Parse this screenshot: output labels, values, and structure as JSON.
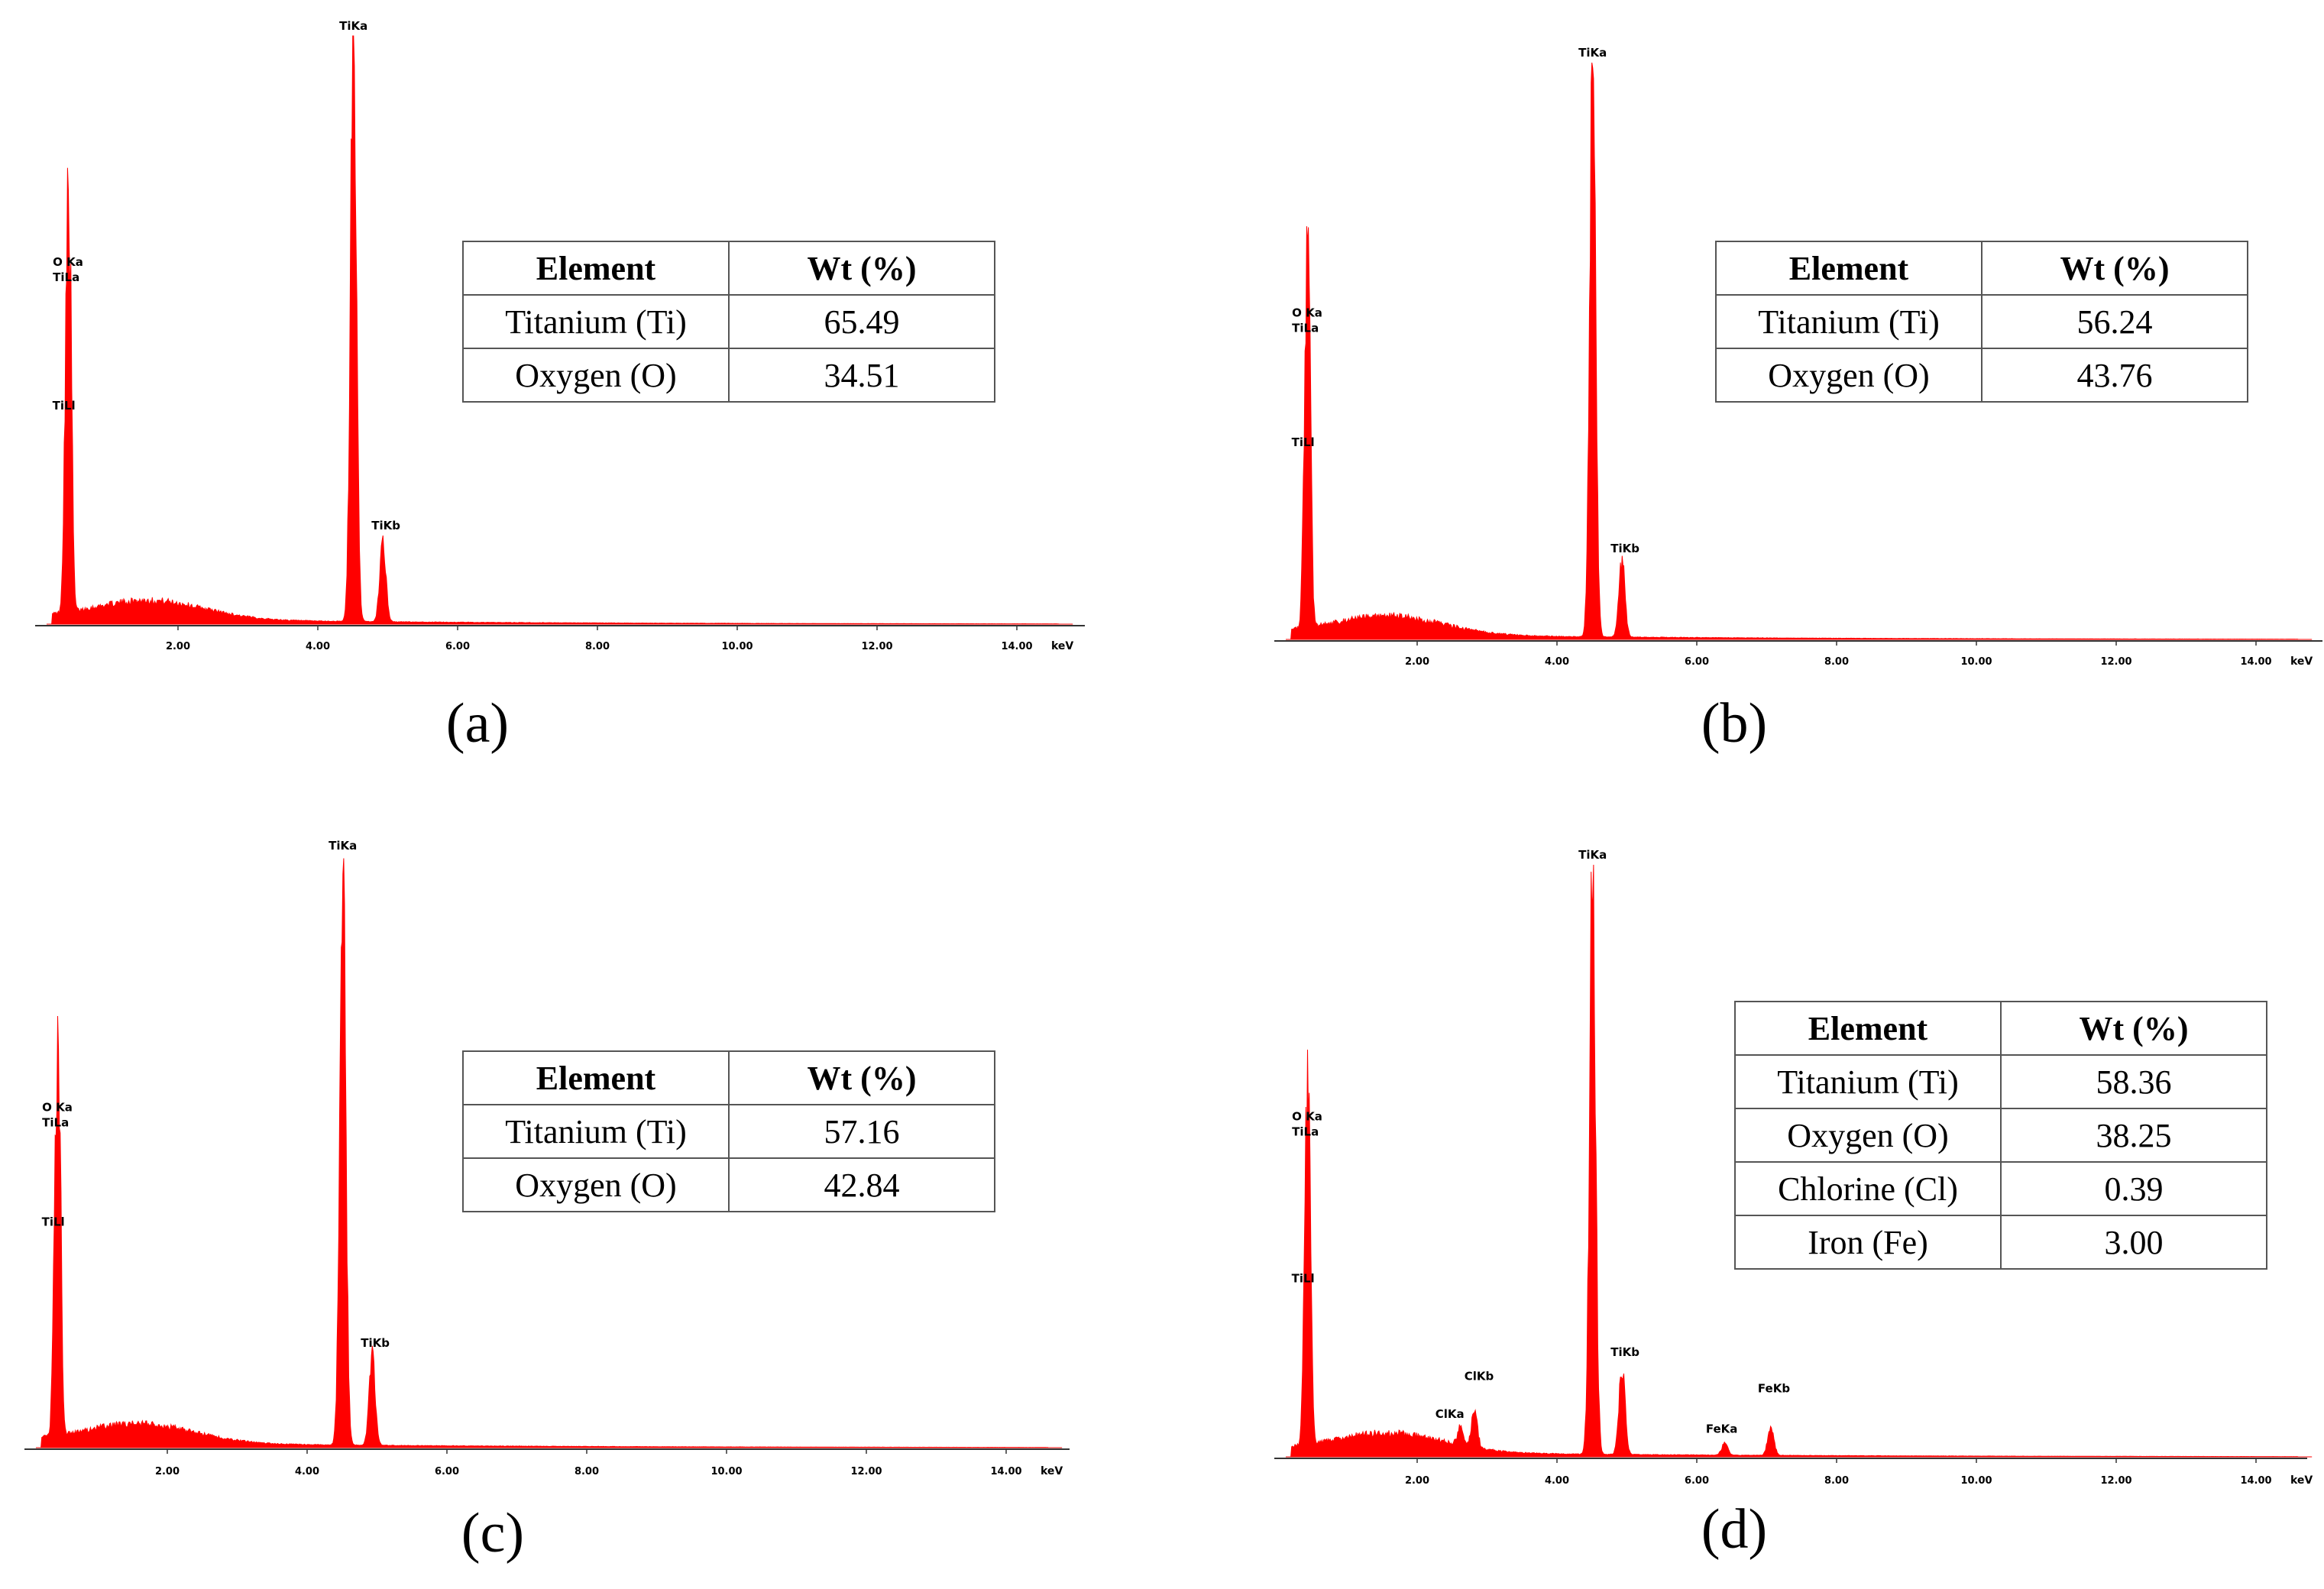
{
  "x_unit": "keV",
  "series_color": "#ff0000",
  "chart_data": [
    {
      "id": "a",
      "label": "(a)",
      "type": "area",
      "xlim": [
        0,
        15
      ],
      "x_ticks": [
        "2.00",
        "4.00",
        "6.00",
        "8.00",
        "10.00",
        "12.00",
        "14.00"
      ],
      "peaks": [
        {
          "x": 0.45,
          "h": 0.57,
          "label": "O Ka\nTiLa"
        },
        {
          "x": 0.4,
          "h": 0.36,
          "label": "TiLl"
        },
        {
          "x": 4.51,
          "h": 1.0,
          "label": "TiKa"
        },
        {
          "x": 4.93,
          "h": 0.14,
          "label": "TiKb"
        }
      ],
      "table": {
        "headers": [
          "Element",
          "Wt (%)"
        ],
        "rows": [
          [
            "Titanium (Ti)",
            "65.49"
          ],
          [
            "Oxygen (O)",
            "34.51"
          ]
        ]
      }
    },
    {
      "id": "b",
      "label": "(b)",
      "type": "area",
      "xlim": [
        0,
        15
      ],
      "x_ticks": [
        "2.00",
        "4.00",
        "6.00",
        "8.00",
        "10.00",
        "12.00",
        "14.00"
      ],
      "peaks": [
        {
          "x": 0.45,
          "h": 0.52,
          "label": "O Ka\nTiLa"
        },
        {
          "x": 0.4,
          "h": 0.33,
          "label": "TiLl"
        },
        {
          "x": 4.51,
          "h": 1.0,
          "label": "TiKa"
        },
        {
          "x": 4.93,
          "h": 0.13,
          "label": "TiKb"
        }
      ],
      "table": {
        "headers": [
          "Element",
          "Wt (%)"
        ],
        "rows": [
          [
            "Titanium (Ti)",
            "56.24"
          ],
          [
            "Oxygen (O)",
            "43.76"
          ]
        ]
      }
    },
    {
      "id": "c",
      "label": "(c)",
      "type": "area",
      "xlim": [
        0,
        15
      ],
      "x_ticks": [
        "2.00",
        "4.00",
        "6.00",
        "8.00",
        "10.00",
        "12.00",
        "14.00"
      ],
      "peaks": [
        {
          "x": 0.45,
          "h": 0.53,
          "label": "O Ka\nTiLa"
        },
        {
          "x": 0.4,
          "h": 0.37,
          "label": "TiLl"
        },
        {
          "x": 4.51,
          "h": 1.0,
          "label": "TiKa"
        },
        {
          "x": 4.93,
          "h": 0.15,
          "label": "TiKb"
        }
      ],
      "table": {
        "headers": [
          "Element",
          "Wt (%)"
        ],
        "rows": [
          [
            "Titanium (Ti)",
            "57.16"
          ],
          [
            "Oxygen (O)",
            "42.84"
          ]
        ]
      }
    },
    {
      "id": "d",
      "label": "(d)",
      "type": "area",
      "xlim": [
        0,
        15
      ],
      "x_ticks": [
        "2.00",
        "4.00",
        "6.00",
        "8.00",
        "10.00",
        "12.00",
        "14.00"
      ],
      "peaks": [
        {
          "x": 0.45,
          "h": 0.53,
          "label": "O Ka\nTiLa"
        },
        {
          "x": 0.4,
          "h": 0.29,
          "label": "TiLl"
        },
        {
          "x": 2.62,
          "h": 0.03,
          "label": "ClKa"
        },
        {
          "x": 2.82,
          "h": 0.06,
          "label": "ClKb"
        },
        {
          "x": 4.51,
          "h": 1.0,
          "label": "TiKa"
        },
        {
          "x": 4.93,
          "h": 0.15,
          "label": "TiKb"
        },
        {
          "x": 6.4,
          "h": 0.02,
          "label": "FeKa"
        },
        {
          "x": 7.06,
          "h": 0.05,
          "label": "FeKb"
        }
      ],
      "table": {
        "headers": [
          "Element",
          "Wt (%)"
        ],
        "rows": [
          [
            "Titanium (Ti)",
            "58.36"
          ],
          [
            "Oxygen (O)",
            "38.25"
          ],
          [
            "Chlorine (Cl)",
            "0.39"
          ],
          [
            "Iron (Fe)",
            "3.00"
          ]
        ]
      }
    }
  ]
}
